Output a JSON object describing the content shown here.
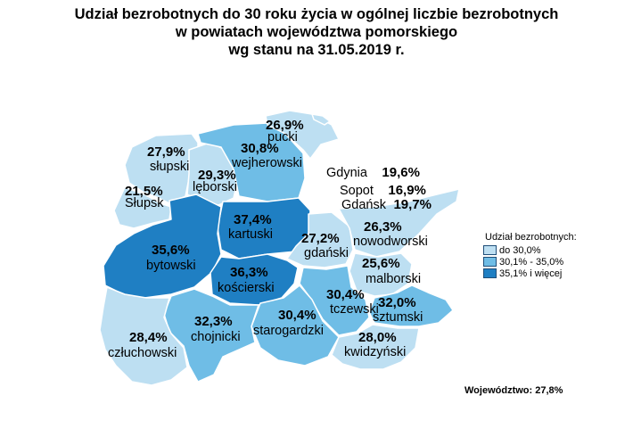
{
  "title": {
    "line1": "Udział bezrobotnych do 30 roku życia w ogólnej liczbie bezrobotnych",
    "line2": "w powiatach województwa pomorskiego",
    "line3": "wg stanu na 31.05.2019 r."
  },
  "colors": {
    "low": "#bddff2",
    "mid": "#6fbde6",
    "high": "#1f7fc3"
  },
  "legend": {
    "title": "Udział bezrobotnych:",
    "items": [
      {
        "label": "do 30,0%",
        "color": "#bddff2"
      },
      {
        "label": "30,1% - 35,0%",
        "color": "#6fbde6"
      },
      {
        "label": "35,1% i więcej",
        "color": "#1f7fc3"
      }
    ]
  },
  "footer": "Województwo: 27,8%",
  "map_data": {
    "regions": [
      {
        "name": "pucki",
        "value": "26,9%",
        "class": "low"
      },
      {
        "name": "wejherowski",
        "value": "30,8%",
        "class": "mid"
      },
      {
        "name": "słupski",
        "value": "27,9%",
        "class": "low"
      },
      {
        "name": "lęborski",
        "value": "29,3%",
        "class": "low"
      },
      {
        "name": "Słupsk",
        "value": "21,5%",
        "class": "low"
      },
      {
        "name": "kartuski",
        "value": "37,4%",
        "class": "high"
      },
      {
        "name": "bytowski",
        "value": "35,6%",
        "class": "high"
      },
      {
        "name": "gdański",
        "value": "27,2%",
        "class": "low"
      },
      {
        "name": "kościerski",
        "value": "36,3%",
        "class": "high"
      },
      {
        "name": "chojnicki",
        "value": "32,3%",
        "class": "mid"
      },
      {
        "name": "człuchowski",
        "value": "28,4%",
        "class": "low"
      },
      {
        "name": "starogardzki",
        "value": "30,4%",
        "class": "mid"
      },
      {
        "name": "tczewski",
        "value": "30,4%",
        "class": "mid"
      },
      {
        "name": "nowodworski",
        "value": "26,3%",
        "class": "low"
      },
      {
        "name": "malborski",
        "value": "25,6%",
        "class": "low"
      },
      {
        "name": "sztumski",
        "value": "32,0%",
        "class": "mid"
      },
      {
        "name": "kwidzyński",
        "value": "28,0%",
        "class": "low"
      }
    ],
    "cities": [
      {
        "name": "Gdynia",
        "value": "19,6%"
      },
      {
        "name": "Sopot",
        "value": "16,9%"
      },
      {
        "name": "Gdańsk",
        "value": "19,7%"
      }
    ]
  }
}
